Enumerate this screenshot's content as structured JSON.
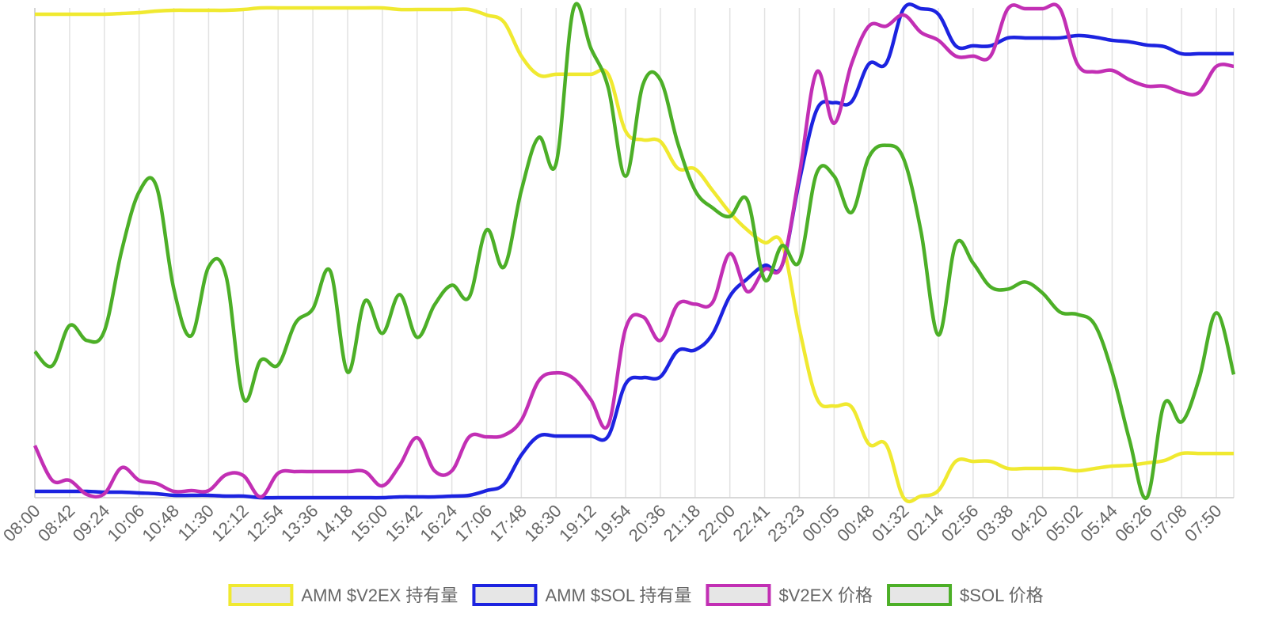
{
  "chart_data": {
    "type": "line",
    "categories": [
      "08:00",
      null,
      "08:42",
      null,
      "09:24",
      null,
      "10:06",
      null,
      "10:48",
      null,
      "11:30",
      null,
      "12:12",
      null,
      "12:54",
      null,
      "13:36",
      null,
      "14:18",
      null,
      "15:00",
      null,
      "15:42",
      null,
      "16:24",
      null,
      "17:06",
      null,
      "17:48",
      null,
      "18:30",
      null,
      "19:12",
      null,
      "19:54",
      null,
      "20:36",
      null,
      "21:18",
      null,
      "22:00",
      null,
      "22:41",
      null,
      "23:23",
      null,
      "00:05",
      null,
      "00:48",
      null,
      "01:32",
      null,
      "02:14",
      null,
      "02:56",
      null,
      "03:38",
      null,
      "04:20",
      null,
      "05:02",
      null,
      "05:44",
      null,
      "06:26",
      null,
      "07:08",
      null,
      "07:50",
      null
    ],
    "ylim": [
      0,
      620
    ],
    "grid": true,
    "legend": "bottom",
    "series": [
      {
        "name": "AMM $V2EX 持有量",
        "color": "#f0e930",
        "values": [
          612,
          612,
          612,
          612,
          612,
          613,
          614,
          616,
          617,
          617,
          617,
          617,
          618,
          620,
          620,
          620,
          620,
          620,
          620,
          620,
          620,
          618,
          618,
          618,
          618,
          618,
          611,
          602,
          559,
          535,
          536,
          536,
          536,
          536,
          464,
          453,
          451,
          417,
          416,
          389,
          361,
          339,
          323,
          322,
          214,
          126,
          116,
          115,
          68,
          67,
          0,
          2,
          9,
          46,
          46,
          46,
          37,
          37,
          37,
          37,
          34,
          37,
          40,
          41,
          44,
          47,
          56,
          56,
          56,
          56
        ]
      },
      {
        "name": "AMM $SOL 持有量",
        "color": "#1c23e0",
        "values": [
          8,
          8,
          8,
          8,
          7,
          7,
          6,
          5,
          3,
          3,
          3,
          2,
          2,
          0,
          0,
          0,
          0,
          0,
          0,
          0,
          0,
          1,
          1,
          1,
          2,
          3,
          9,
          17,
          54,
          78,
          78,
          78,
          78,
          78,
          144,
          152,
          153,
          186,
          187,
          207,
          255,
          277,
          294,
          294,
          401,
          491,
          500,
          501,
          549,
          550,
          619,
          619,
          612,
          572,
          572,
          572,
          582,
          582,
          582,
          582,
          585,
          583,
          579,
          577,
          573,
          571,
          562,
          562,
          562,
          562
        ]
      },
      {
        "name": "$V2EX 价格",
        "color": "#c22fb4",
        "values": [
          66,
          22,
          22,
          4,
          5,
          38,
          22,
          18,
          8,
          9,
          9,
          29,
          28,
          1,
          31,
          33,
          33,
          33,
          33,
          33,
          15,
          41,
          76,
          34,
          34,
          77,
          77,
          79,
          98,
          148,
          158,
          151,
          124,
          92,
          214,
          229,
          199,
          245,
          245,
          247,
          309,
          261,
          289,
          294,
          409,
          539,
          474,
          549,
          597,
          597,
          611,
          589,
          579,
          559,
          559,
          559,
          619,
          619,
          619,
          619,
          549,
          539,
          541,
          529,
          521,
          521,
          513,
          513,
          546,
          546
        ]
      },
      {
        "name": "$SOL 价格",
        "color": "#4caf27",
        "values": [
          185,
          167,
          218,
          199,
          211,
          313,
          387,
          394,
          264,
          205,
          292,
          281,
          126,
          174,
          168,
          221,
          239,
          287,
          159,
          249,
          208,
          257,
          203,
          244,
          269,
          254,
          339,
          292,
          389,
          456,
          423,
          619,
          569,
          519,
          407,
          523,
          529,
          449,
          389,
          367,
          356,
          377,
          276,
          319,
          299,
          411,
          407,
          361,
          431,
          446,
          429,
          337,
          206,
          321,
          297,
          267,
          264,
          273,
          259,
          235,
          232,
          219,
          159,
          73,
          0,
          119,
          96,
          150,
          234,
          156
        ]
      }
    ]
  }
}
